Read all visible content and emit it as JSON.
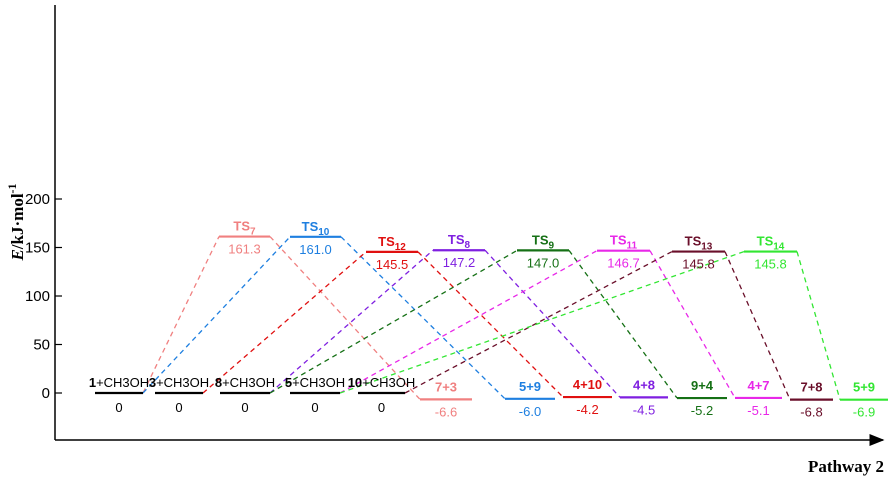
{
  "chart_data": {
    "type": "line",
    "title": "",
    "xlabel": "Pathway 2",
    "ylabel": "E/kJ·mol-1",
    "ylim": [
      0,
      200
    ],
    "yticks": [
      0,
      50,
      100,
      150,
      200
    ],
    "grid": false,
    "reactant_states": [
      {
        "name": "1+CH3OH",
        "bold_part": "1",
        "rest": "+CH3OH",
        "value": 0,
        "value_label": "0"
      },
      {
        "name": "3+CH3OH",
        "bold_part": "3",
        "rest": "+CH3OH",
        "value": 0,
        "value_label": "0"
      },
      {
        "name": "8+CH3OH",
        "bold_part": "8",
        "rest": "+CH3OH",
        "value": 0,
        "value_label": "0"
      },
      {
        "name": "5+CH3OH",
        "bold_part": "5",
        "rest": "+CH3OH",
        "value": 0,
        "value_label": "0"
      },
      {
        "name": "10+CH3OH",
        "bold_part": "10",
        "rest": "+CH3OH",
        "value": 0,
        "value_label": "0"
      }
    ],
    "series": [
      {
        "name": "TS7",
        "ts_base": "TS",
        "ts_sub": "7",
        "color": "#f08080",
        "start_index": 0,
        "ts_value": 161.3,
        "ts_label": "161.3",
        "product": "7+3",
        "product_value": -6.6,
        "product_label": "-6.6"
      },
      {
        "name": "TS10",
        "ts_base": "TS",
        "ts_sub": "10",
        "color": "#1e7fe0",
        "start_index": 0,
        "ts_value": 161.0,
        "ts_label": "161.0",
        "product": "5+9",
        "product_value": -6.0,
        "product_label": "-6.0"
      },
      {
        "name": "TS12",
        "ts_base": "TS",
        "ts_sub": "12",
        "color": "#e01010",
        "start_index": 1,
        "ts_value": 145.5,
        "ts_label": "145.5",
        "product": "4+10",
        "product_value": -4.2,
        "product_label": "-4.2"
      },
      {
        "name": "TS8",
        "ts_base": "TS",
        "ts_sub": "8",
        "color": "#7f1fe0",
        "start_index": 2,
        "ts_value": 147.2,
        "ts_label": "147.2",
        "product": "4+8",
        "product_value": -4.5,
        "product_label": "-4.5"
      },
      {
        "name": "TS9",
        "ts_base": "TS",
        "ts_sub": "9",
        "color": "#157015",
        "start_index": 2,
        "ts_value": 147.0,
        "ts_label": "147.0",
        "product": "9+4",
        "product_value": -5.2,
        "product_label": "-5.2"
      },
      {
        "name": "TS11",
        "ts_base": "TS",
        "ts_sub": "11",
        "color": "#e828e8",
        "start_index": 3,
        "ts_value": 146.7,
        "ts_label": "146.7",
        "product": "4+7",
        "product_value": -5.1,
        "product_label": "-5.1"
      },
      {
        "name": "TS13",
        "ts_base": "TS",
        "ts_sub": "13",
        "color": "#6a0f2a",
        "start_index": 4,
        "ts_value": 145.8,
        "ts_label": "145.8",
        "product": "7+8",
        "product_value": -6.8,
        "product_label": "-6.8"
      },
      {
        "name": "TS14",
        "ts_base": "TS",
        "ts_sub": "14",
        "color": "#32e632",
        "start_index": 3,
        "ts_value": 145.8,
        "ts_label": "145.8",
        "product": "5+9",
        "product_value": -6.9,
        "product_label": "-6.9"
      }
    ]
  }
}
